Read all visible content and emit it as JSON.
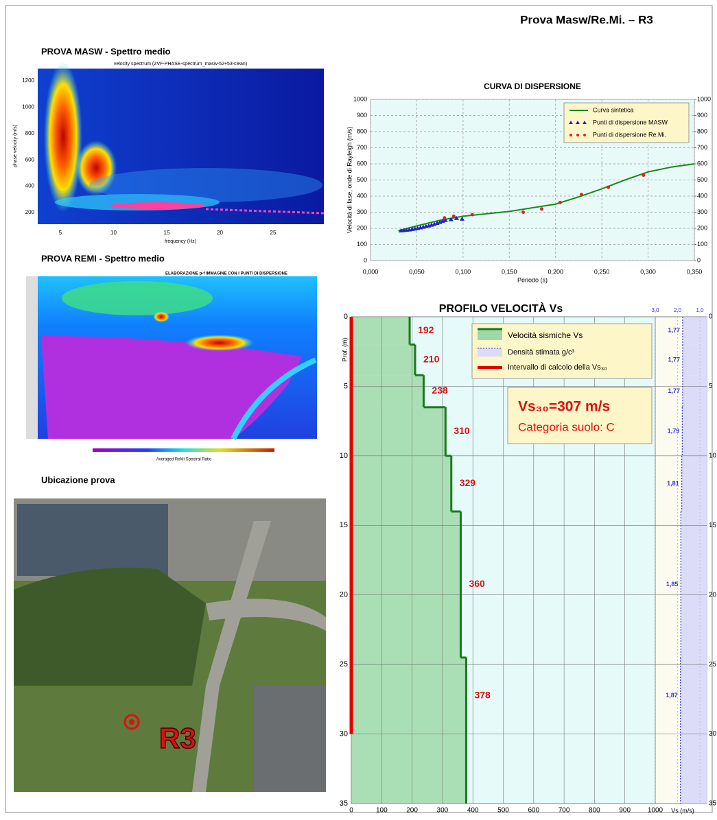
{
  "header": {
    "title": "Prova Masw/Re.Mi. – R3"
  },
  "masw_spectrum": {
    "title": "PROVA MASW - Spettro medio",
    "subtitle": "velocity spectrum (ZVF-PHASE-spectrum_masw-52+53-clean)",
    "xlabel": "frequency (Hz)",
    "ylabel": "phase velocity (m/s)",
    "xticks": [
      5,
      10,
      15,
      20,
      25
    ],
    "yticks": [
      200,
      400,
      600,
      800,
      1000,
      1200
    ]
  },
  "remi_spectrum": {
    "title": "PROVA REMI - Spettro medio",
    "subtitle": "ELABORAZIONE p-f IMMAGINE CON I PUNTI DI DISPERSIONE",
    "colorbar_label": "Averaged ReMi Spectral Ratio"
  },
  "location": {
    "title": "Ubicazione prova",
    "marker_label": "R3"
  },
  "chart_data": [
    {
      "type": "line",
      "title": "CURVA DI DISPERSIONE",
      "xlabel": "Periodo (s)",
      "ylabel": "Velocità di fase, onde di Rayleigh (m/s)",
      "xlim": [
        0,
        0.35
      ],
      "xticks": [
        {
          "value": 0,
          "label": "0,000"
        },
        {
          "value": 0.05,
          "label": "0,050"
        },
        {
          "value": 0.1,
          "label": "0,100"
        },
        {
          "value": 0.15,
          "label": "0,150"
        },
        {
          "value": 0.2,
          "label": "0,200"
        },
        {
          "value": 0.25,
          "label": "0,250"
        },
        {
          "value": 0.3,
          "label": "0,300"
        },
        {
          "value": 0.35,
          "label": "0,350"
        }
      ],
      "ylim": [
        0,
        1000
      ],
      "yticks": [
        0,
        100,
        200,
        300,
        400,
        500,
        600,
        700,
        800,
        900,
        1000
      ],
      "y2lim": [
        0,
        1000
      ],
      "y2ticks": [
        0,
        100,
        200,
        300,
        400,
        500,
        600,
        700,
        800,
        900,
        1000
      ],
      "grid": true,
      "legend": "upper right",
      "series": [
        {
          "name": "Curva sintetica",
          "color": "#1a8a1a",
          "marker": "none",
          "x": [
            0.03,
            0.05,
            0.075,
            0.1,
            0.15,
            0.2,
            0.225,
            0.25,
            0.275,
            0.3,
            0.325,
            0.35
          ],
          "values": [
            185,
            215,
            250,
            275,
            305,
            350,
            395,
            445,
            500,
            550,
            580,
            600
          ]
        },
        {
          "name": "Punti di dispersione MASW",
          "color": "#2222cc",
          "marker": "triangle",
          "x": [
            0.033,
            0.036,
            0.039,
            0.042,
            0.045,
            0.048,
            0.051,
            0.054,
            0.057,
            0.06,
            0.063,
            0.066,
            0.069,
            0.072,
            0.075,
            0.078,
            0.081,
            0.087,
            0.093,
            0.099
          ],
          "values": [
            185,
            187,
            189,
            191,
            194,
            197,
            200,
            204,
            208,
            212,
            216,
            221,
            226,
            232,
            238,
            245,
            250,
            255,
            262,
            258
          ]
        },
        {
          "name": "Punti di dispersione Re.Mi.",
          "color": "#dd2222",
          "marker": "circle",
          "x": [
            0.08,
            0.09,
            0.11,
            0.165,
            0.185,
            0.205,
            0.228,
            0.257,
            0.295
          ],
          "values": [
            265,
            275,
            285,
            300,
            320,
            360,
            410,
            455,
            530
          ]
        }
      ]
    },
    {
      "type": "profile",
      "title": "PROFILO VELOCITÀ Vs",
      "xlabel": "Vs (m/s)",
      "ylabel": "Prof. (m)",
      "xlim": [
        0,
        1000
      ],
      "xticks": [
        0,
        100,
        200,
        300,
        400,
        500,
        600,
        700,
        800,
        900,
        1000
      ],
      "ylim": [
        0,
        35
      ],
      "y_inverted": true,
      "yticks": [
        0,
        5,
        10,
        15,
        20,
        25,
        30,
        35
      ],
      "x2lim": [
        3,
        1
      ],
      "x2ticks": [
        {
          "value": 3,
          "label": "3,0"
        },
        {
          "value": 2,
          "label": "2,0"
        },
        {
          "value": 1,
          "label": "1,0"
        }
      ],
      "grid": true,
      "depth_top": [
        0,
        2,
        4.2,
        6.5,
        10,
        14,
        24.5
      ],
      "depth_bottom": [
        2,
        4.2,
        6.5,
        10,
        14,
        24.5,
        35
      ],
      "series": [
        {
          "name": "Velocità sismiche Vs",
          "color": "#1a7a1a",
          "values": [
            192,
            210,
            238,
            310,
            329,
            360,
            378
          ]
        },
        {
          "name": "Densità stimata g/c³",
          "color": "#3333cc",
          "axis": "x2",
          "values": [
            1.77,
            1.77,
            1.77,
            1.79,
            1.81,
            1.85,
            1.87
          ],
          "value_labels": [
            "1,77",
            "1,77",
            "1,77",
            "1,79",
            "1,81",
            "1,85",
            "1,87"
          ]
        }
      ],
      "calc_interval": {
        "name": "Intervallo di calcolo della Vs₃₀",
        "color": "#e00000",
        "range": [
          0,
          30
        ]
      },
      "annotation": {
        "line1": "Vs₃₀=307 m/s",
        "line2": "Categoria suolo: C"
      }
    }
  ]
}
